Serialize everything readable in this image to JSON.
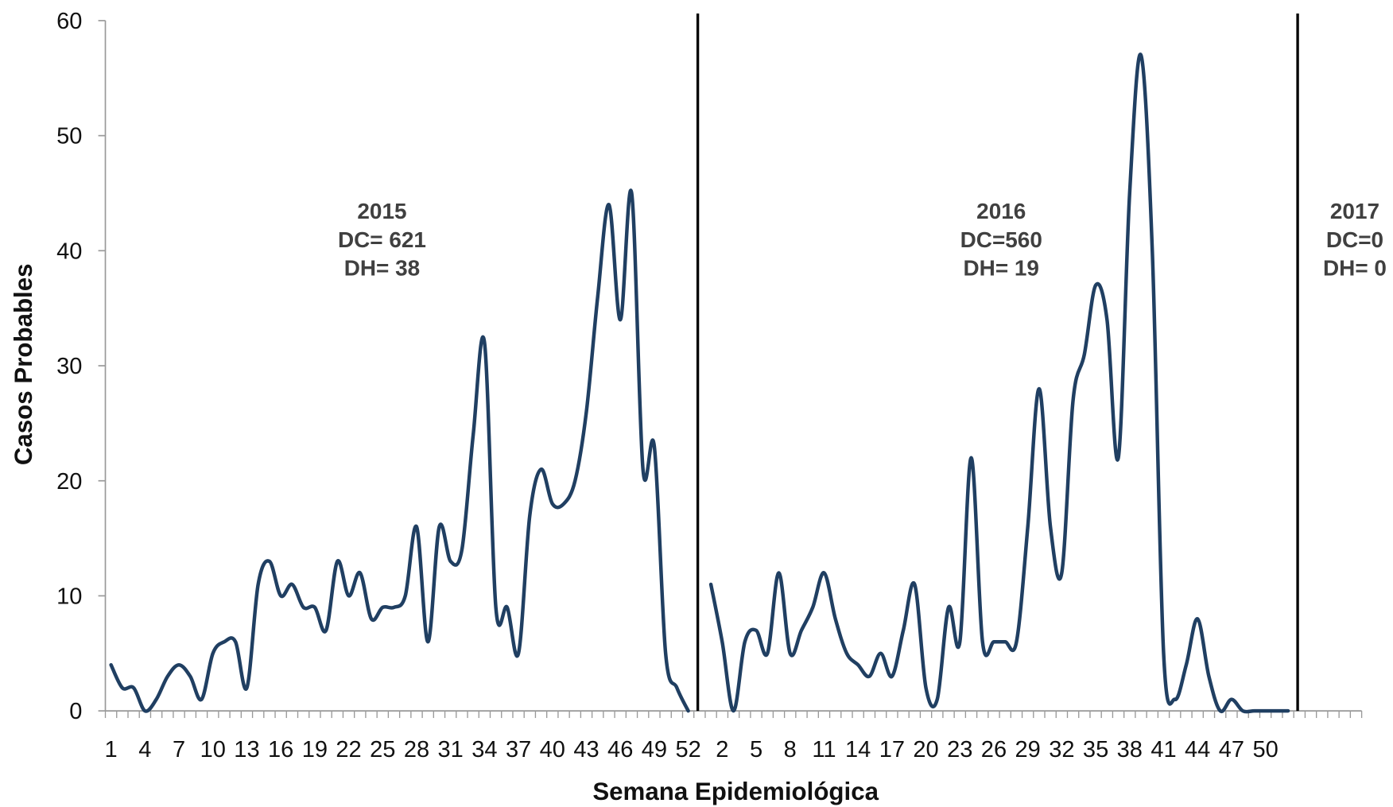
{
  "chart_data": {
    "type": "line",
    "xlabel": "Semana Epidemiológica",
    "ylabel": "Casos Probables",
    "categories": [
      "1",
      null,
      null,
      "4",
      null,
      null,
      "7",
      null,
      null,
      "10",
      null,
      null,
      "13",
      null,
      null,
      "16",
      null,
      null,
      "19",
      null,
      null,
      "22",
      null,
      null,
      "25",
      null,
      null,
      "28",
      null,
      null,
      "31",
      null,
      null,
      "34",
      null,
      null,
      "37",
      null,
      null,
      "40",
      null,
      null,
      "43",
      null,
      null,
      "46",
      null,
      null,
      "49",
      null,
      null,
      "52",
      null,
      null,
      "2",
      null,
      null,
      "5",
      null,
      null,
      "8",
      null,
      null,
      "11",
      null,
      null,
      "14",
      null,
      null,
      "17",
      null,
      null,
      "20",
      null,
      null,
      "23",
      null,
      null,
      "26",
      null,
      null,
      "29",
      null,
      null,
      "32",
      null,
      null,
      "35",
      null,
      null,
      "38",
      null,
      null,
      "41",
      null,
      null,
      "44",
      null,
      null,
      "47",
      null,
      null,
      "50",
      null,
      null,
      null,
      null,
      null,
      null,
      null,
      null
    ],
    "series": [
      {
        "name": "Casos Probables",
        "color": "#203f62",
        "values": [
          4,
          2,
          2,
          0,
          1,
          3,
          4,
          3,
          1,
          5,
          6,
          6,
          2,
          11,
          13,
          10,
          11,
          9,
          9,
          7,
          13,
          10,
          12,
          8,
          9,
          9,
          10,
          16,
          6,
          16,
          13,
          14,
          24,
          32,
          9,
          9,
          5,
          17,
          21,
          18,
          18,
          20,
          26,
          36,
          44,
          34,
          45,
          21,
          23,
          5,
          2,
          0,
          null,
          11,
          6,
          0,
          6,
          7,
          5,
          12,
          5,
          7,
          9,
          12,
          8,
          5,
          4,
          3,
          5,
          3,
          7,
          11,
          2,
          1,
          9,
          6,
          22,
          6,
          6,
          6,
          6,
          16,
          28,
          16,
          12,
          27,
          31,
          37,
          34,
          22,
          45,
          57,
          40,
          5,
          1,
          4,
          8,
          3,
          0,
          1,
          0,
          0,
          0,
          0,
          0,
          null,
          null,
          null,
          null,
          null,
          null
        ]
      }
    ],
    "ylim": [
      0,
      60
    ],
    "yticks": [
      0,
      10,
      20,
      30,
      40,
      50,
      60
    ],
    "annotations": [
      {
        "lines": [
          "2015",
          "DC= 621",
          "DH= 38"
        ]
      },
      {
        "lines": [
          "2016",
          "DC=560",
          "DH= 19"
        ]
      },
      {
        "lines": [
          "2017",
          "DC=0",
          "DH= 0"
        ]
      }
    ]
  }
}
